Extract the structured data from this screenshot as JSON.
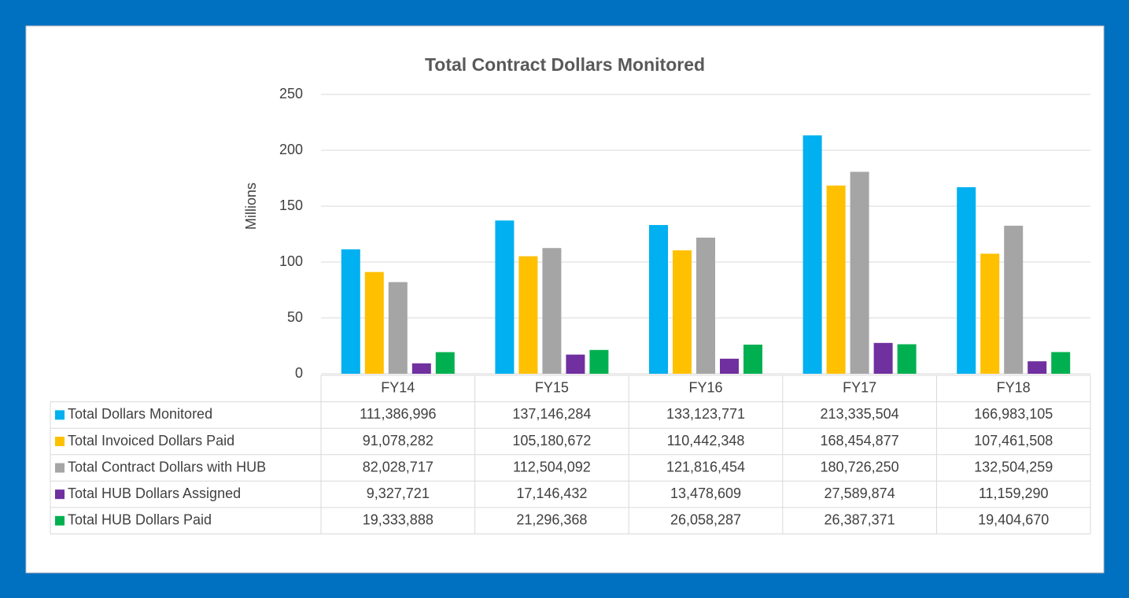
{
  "chart_data": {
    "type": "bar",
    "title": "Total Contract Dollars Monitored",
    "y_label": "Millions",
    "categories": [
      "FY14",
      "FY15",
      "FY16",
      "FY17",
      "FY18"
    ],
    "ylim": [
      0,
      250
    ],
    "yticks": [
      0,
      50,
      100,
      150,
      200,
      250
    ],
    "grid": true,
    "series": [
      {
        "name": "Total Dollars Monitored",
        "color": "#00b0f0",
        "values": [
          111.386996,
          137.146284,
          133.123771,
          213.335504,
          166.983105
        ],
        "value_labels": [
          "111,386,996",
          "137,146,284",
          "133,123,771",
          "213,335,504",
          "166,983,105"
        ]
      },
      {
        "name": "Total Invoiced Dollars Paid",
        "color": "#ffc000",
        "values": [
          91.078282,
          105.180672,
          110.442348,
          168.454877,
          107.461508
        ],
        "value_labels": [
          "91,078,282",
          "105,180,672",
          "110,442,348",
          "168,454,877",
          "107,461,508"
        ]
      },
      {
        "name": "Total Contract Dollars with HUB",
        "color": "#a5a5a5",
        "values": [
          82.028717,
          112.504092,
          121.816454,
          180.72625,
          132.504259
        ],
        "value_labels": [
          "82,028,717",
          "112,504,092",
          "121,816,454",
          "180,726,250",
          "132,504,259"
        ]
      },
      {
        "name": "Total HUB Dollars Assigned",
        "color": "#7030a0",
        "values": [
          9.327721,
          17.146432,
          13.478609,
          27.589874,
          11.15929
        ],
        "value_labels": [
          "9,327,721",
          "17,146,432",
          "13,478,609",
          "27,589,874",
          "11,159,290"
        ]
      },
      {
        "name": "Total HUB Dollars Paid",
        "color": "#00b050",
        "values": [
          19.333888,
          21.296368,
          26.058287,
          26.387371,
          19.40467
        ],
        "value_labels": [
          "19,333,888",
          "21,296,368",
          "26,058,287",
          "26,387,371",
          "19,404,670"
        ]
      }
    ]
  }
}
